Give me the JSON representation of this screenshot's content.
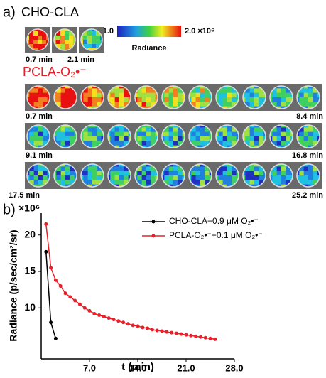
{
  "panel_a": {
    "label": "a)",
    "group1": {
      "name": "CHO-CLA",
      "start": "0.7 min",
      "end": "2.1 min"
    },
    "colorbar": {
      "min": "1.0",
      "max": "2.0 ×10⁶",
      "title": "Radiance"
    },
    "group2": {
      "name": "PCLA-O₂•⁻",
      "rows": [
        {
          "start": "0.7 min",
          "end": "8.4 min"
        },
        {
          "start": "9.1 min",
          "end": "16.8 min"
        },
        {
          "start": "17.5 min",
          "end": "25.2 min"
        }
      ]
    }
  },
  "chart_data": {
    "type": "line",
    "title": "b)",
    "y_multiplier": "×10⁶",
    "x_label": "t (min)",
    "y_label": "Radiance (p/sec/cm²/sr)",
    "xlim": [
      0,
      28
    ],
    "ylim": [
      3,
      23
    ],
    "xticks": [
      {
        "value": 7,
        "label": "7.0"
      },
      {
        "value": 14,
        "label": "14.0"
      },
      {
        "value": 21,
        "label": "21.0"
      },
      {
        "value": 28,
        "label": "28.0"
      }
    ],
    "yticks": [
      10,
      15,
      20
    ],
    "series": [
      {
        "name": "CHO-CLA+0.9 μM O₂•⁻",
        "color": "#000000",
        "x": [
          0.7,
          1.4,
          2.1
        ],
        "values": [
          17.7,
          8.0,
          5.8
        ]
      },
      {
        "name": "PCLA-O₂•⁻+0.1 μM O₂•⁻",
        "color": "#e8202a",
        "x": [
          0.7,
          1.4,
          2.1,
          2.8,
          3.5,
          4.2,
          4.9,
          5.6,
          6.3,
          7.0,
          7.7,
          8.4,
          9.1,
          9.8,
          10.5,
          11.2,
          11.9,
          12.6,
          13.3,
          14.0,
          14.7,
          15.4,
          16.1,
          16.8,
          17.5,
          18.2,
          18.9,
          19.6,
          20.3,
          21.0,
          21.7,
          22.4,
          23.1,
          23.8,
          24.5,
          25.2
        ],
        "values": [
          21.5,
          15.5,
          13.8,
          13.0,
          12.0,
          11.5,
          11.0,
          10.5,
          10.0,
          9.6,
          9.2,
          9.0,
          8.8,
          8.6,
          8.4,
          8.2,
          8.0,
          7.8,
          7.6,
          7.5,
          7.3,
          7.2,
          7.0,
          6.9,
          6.8,
          6.7,
          6.6,
          6.5,
          6.4,
          6.3,
          6.2,
          6.1,
          6.0,
          5.9,
          5.8,
          5.7
        ]
      }
    ]
  }
}
